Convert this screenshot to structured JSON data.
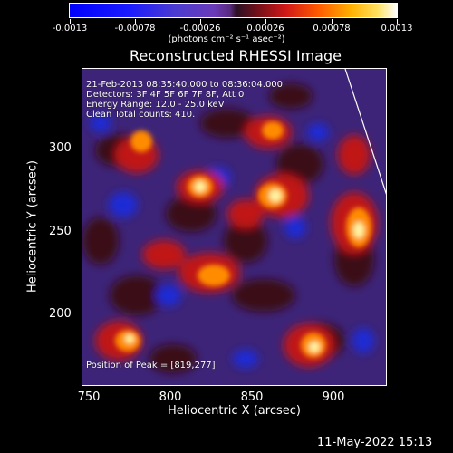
{
  "colorbar": {
    "tick_labels": [
      "-0.0013",
      "-0.00078",
      "-0.00026",
      "0.00026",
      "0.00078",
      "0.0013"
    ],
    "units": "(photons cm⁻² s⁻¹ asec⁻²)"
  },
  "title": "Reconstructed RHESSI Image",
  "overlay": {
    "time": "21-Feb-2013 08:35:40.000 to 08:36:04.000",
    "detectors": "Detectors: 3F 4F 5F 6F 7F 8F, Att 0",
    "energy": "Energy Range: 12.0 - 25.0 keV",
    "clean": "Clean     Total counts: 410.",
    "peak": "Position of Peak = [819,277]"
  },
  "axes": {
    "xlabel": "Heliocentric X (arcsec)",
    "ylabel": "Heliocentric Y (arcsec)",
    "xticks": [
      "750",
      "800",
      "850",
      "900"
    ],
    "yticks": [
      "300",
      "250",
      "200"
    ]
  },
  "footer_date": "11-May-2022 15:13"
}
